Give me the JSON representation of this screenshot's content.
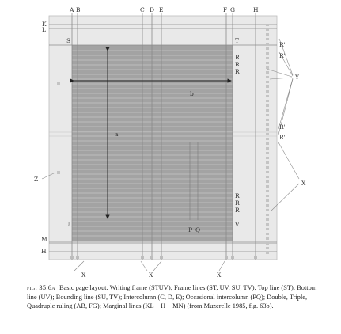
{
  "figure": {
    "top_labels": [
      "A",
      "B",
      "C",
      "D",
      "E",
      "F",
      "G",
      "H"
    ],
    "left_labels": [
      "K",
      "L",
      "S",
      "M",
      "H"
    ],
    "corner_labels": [
      "S",
      "T",
      "U",
      "V"
    ],
    "right_labels_top": [
      "R",
      "R",
      "R"
    ],
    "right_labels_bottom": [
      "R",
      "R",
      "R"
    ],
    "prime_labels": [
      "R'",
      "R'",
      "R'",
      "R'"
    ],
    "dimension_labels": {
      "a": "a",
      "b": "b"
    },
    "pq_labels": [
      "P",
      "Q"
    ],
    "annotation_labels": {
      "y": "Y",
      "z": "Z",
      "x_right": "X"
    },
    "bottom_x_labels": [
      "X",
      "X",
      "X"
    ]
  },
  "caption": {
    "label": "fig. 35.6a",
    "text": "Basic page layout: Writing frame (STUV); Frame lines (ST, UV, SU, TV); Top line (ST); Bottom line (UV); Bounding line (SU, TV); Intercolumn (C, D, E); Occasional intercolumn (PQ); Double, Triple, Quadruple ruling (AB, FG); Marginal lines (KL + H + MN) (from Muzerelle 1985, fig. 63b)."
  }
}
